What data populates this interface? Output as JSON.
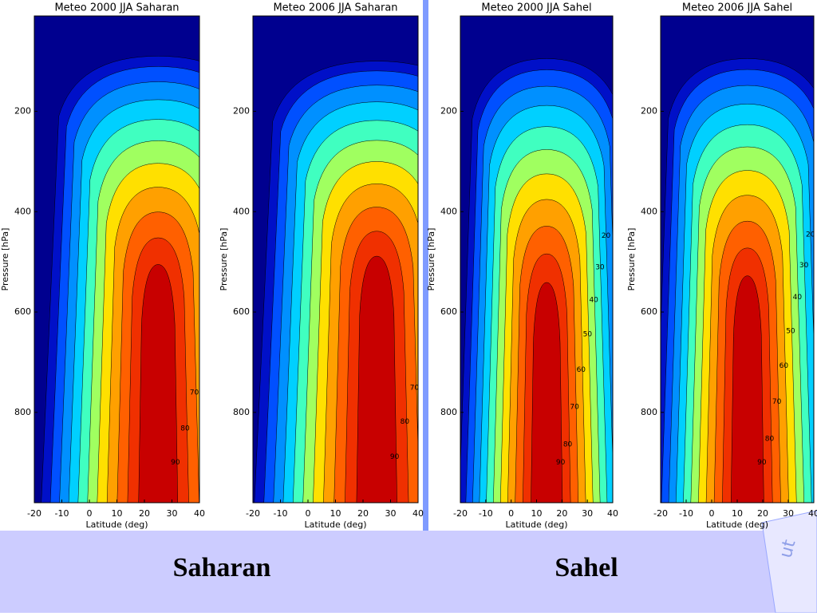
{
  "chart_data": [
    {
      "type": "contour",
      "title": "Meteo 2000 JJA Saharan",
      "xlabel": "Latitude (deg)",
      "ylabel": "Pressure [hPa]",
      "xlim": [
        -20,
        40
      ],
      "xticks": [
        -20,
        -10,
        0,
        10,
        20,
        30,
        40
      ],
      "ylim": [
        980,
        10
      ],
      "yticks": [
        200,
        400,
        600,
        800
      ],
      "levels": [
        5,
        10,
        15,
        20,
        30,
        40,
        50,
        60,
        70,
        80,
        90
      ],
      "background_color": "#00008f",
      "colors": [
        "#0010c8",
        "#0050ff",
        "#0090ff",
        "#00d0ff",
        "#40ffc0",
        "#a0ff60",
        "#ffe000",
        "#ffa000",
        "#ff6000",
        "#f03000",
        "#c80000"
      ]
    },
    {
      "type": "contour",
      "title": "Meteo 2006 JJA Saharan",
      "xlabel": "Latitude (deg)",
      "ylabel": "Pressure [hPa]",
      "xlim": [
        -20,
        40
      ],
      "xticks": [
        -20,
        -10,
        0,
        10,
        20,
        30,
        40
      ],
      "ylim": [
        980,
        10
      ],
      "yticks": [
        200,
        400,
        600,
        800
      ],
      "levels": [
        5,
        10,
        15,
        20,
        30,
        40,
        50,
        60,
        70,
        80,
        90
      ],
      "background_color": "#00008f",
      "colors": [
        "#0010c8",
        "#0050ff",
        "#0090ff",
        "#00d0ff",
        "#40ffc0",
        "#a0ff60",
        "#ffe000",
        "#ffa000",
        "#ff6000",
        "#f03000",
        "#c80000"
      ]
    },
    {
      "type": "contour",
      "title": "Meteo 2000 JJA Sahel",
      "xlabel": "Latitude (deg)",
      "ylabel": "Pressure [hPa]",
      "xlim": [
        -20,
        40
      ],
      "xticks": [
        -20,
        -10,
        0,
        10,
        20,
        30,
        40
      ],
      "ylim": [
        980,
        10
      ],
      "yticks": [
        200,
        400,
        600,
        800
      ],
      "levels": [
        5,
        10,
        15,
        20,
        30,
        40,
        50,
        60,
        70,
        80,
        90
      ],
      "background_color": "#00008f",
      "colors": [
        "#0010c8",
        "#0050ff",
        "#0090ff",
        "#00d0ff",
        "#40ffc0",
        "#a0ff60",
        "#ffe000",
        "#ffa000",
        "#ff6000",
        "#f03000",
        "#c80000"
      ]
    },
    {
      "type": "contour",
      "title": "Meteo 2006 JJA Sahel",
      "xlabel": "Latitude (deg)",
      "ylabel": "Pressure [hPa]",
      "xlim": [
        -20,
        40
      ],
      "xticks": [
        -20,
        -10,
        0,
        10,
        20,
        30,
        40
      ],
      "ylim": [
        980,
        10
      ],
      "yticks": [
        200,
        400,
        600,
        800
      ],
      "levels": [
        5,
        10,
        15,
        20,
        30,
        40,
        50,
        60,
        70,
        80,
        90
      ],
      "background_color": "#00008f",
      "colors": [
        "#0010c8",
        "#0050ff",
        "#0090ff",
        "#00d0ff",
        "#40ffc0",
        "#a0ff60",
        "#ffe000",
        "#ffa000",
        "#ff6000",
        "#f03000",
        "#c80000"
      ]
    }
  ],
  "captions": [
    "Saharan",
    "Sahel"
  ],
  "logo_text": "ut"
}
